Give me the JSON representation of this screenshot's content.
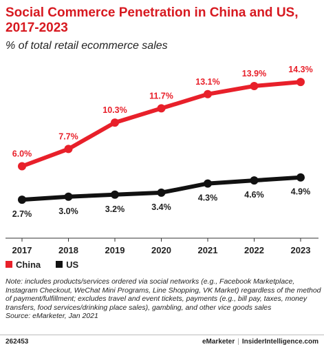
{
  "header": {
    "title": "Social Commerce Penetration in China and US, 2017-2023",
    "subtitle": "% of total retail ecommerce sales"
  },
  "chart_data": {
    "type": "line",
    "x": [
      "2017",
      "2018",
      "2019",
      "2020",
      "2021",
      "2022",
      "2023"
    ],
    "ylim": [
      0,
      16
    ],
    "grid": false,
    "legend_position": "bottom-left",
    "series": [
      {
        "name": "China",
        "color": "#e8202a",
        "values": [
          6.0,
          7.7,
          10.3,
          11.7,
          13.1,
          13.9,
          14.3
        ],
        "labels": [
          "6.0%",
          "7.7%",
          "10.3%",
          "11.7%",
          "13.1%",
          "13.9%",
          "14.3%"
        ],
        "label_position": "above"
      },
      {
        "name": "US",
        "color": "#111111",
        "values": [
          2.7,
          3.0,
          3.2,
          3.4,
          4.3,
          4.6,
          4.9
        ],
        "labels": [
          "2.7%",
          "3.0%",
          "3.2%",
          "3.4%",
          "4.3%",
          "4.6%",
          "4.9%"
        ],
        "label_position": "below"
      }
    ]
  },
  "note": "Note: includes products/services ordered via social networks (e.g., Facebook Marketplace, Instagram Checkout, WeChat Mini Programs, Line Shopping, VK Market) regardless of the method of payment/fulfillment; excludes travel and event tickets, payments (e.g., bill pay, taxes, money transfers, food services/drinking place sales), gambling, and other vice goods sales",
  "source": "Source: eMarketer, Jan 2021",
  "footer": {
    "chart_id": "262453",
    "brand_left": "eMarketer",
    "separator": "|",
    "brand_right": "InsiderIntelligence.com"
  }
}
